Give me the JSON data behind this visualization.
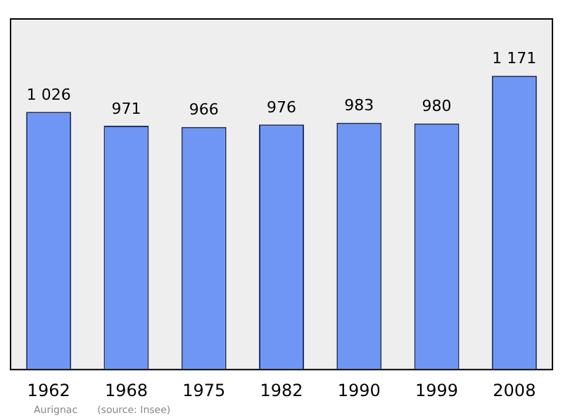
{
  "chart_data": {
    "type": "bar",
    "categories": [
      "1962",
      "1968",
      "1975",
      "1982",
      "1990",
      "1999",
      "2008"
    ],
    "values": [
      1026,
      971,
      966,
      976,
      983,
      980,
      1171
    ],
    "value_labels": [
      "1 026",
      "971",
      "966",
      "976",
      "983",
      "980",
      "1 171"
    ],
    "color": "#6f96f5",
    "grid": false,
    "legend": false,
    "annotations": [
      "Aurignac",
      "(source: Insee)"
    ]
  }
}
